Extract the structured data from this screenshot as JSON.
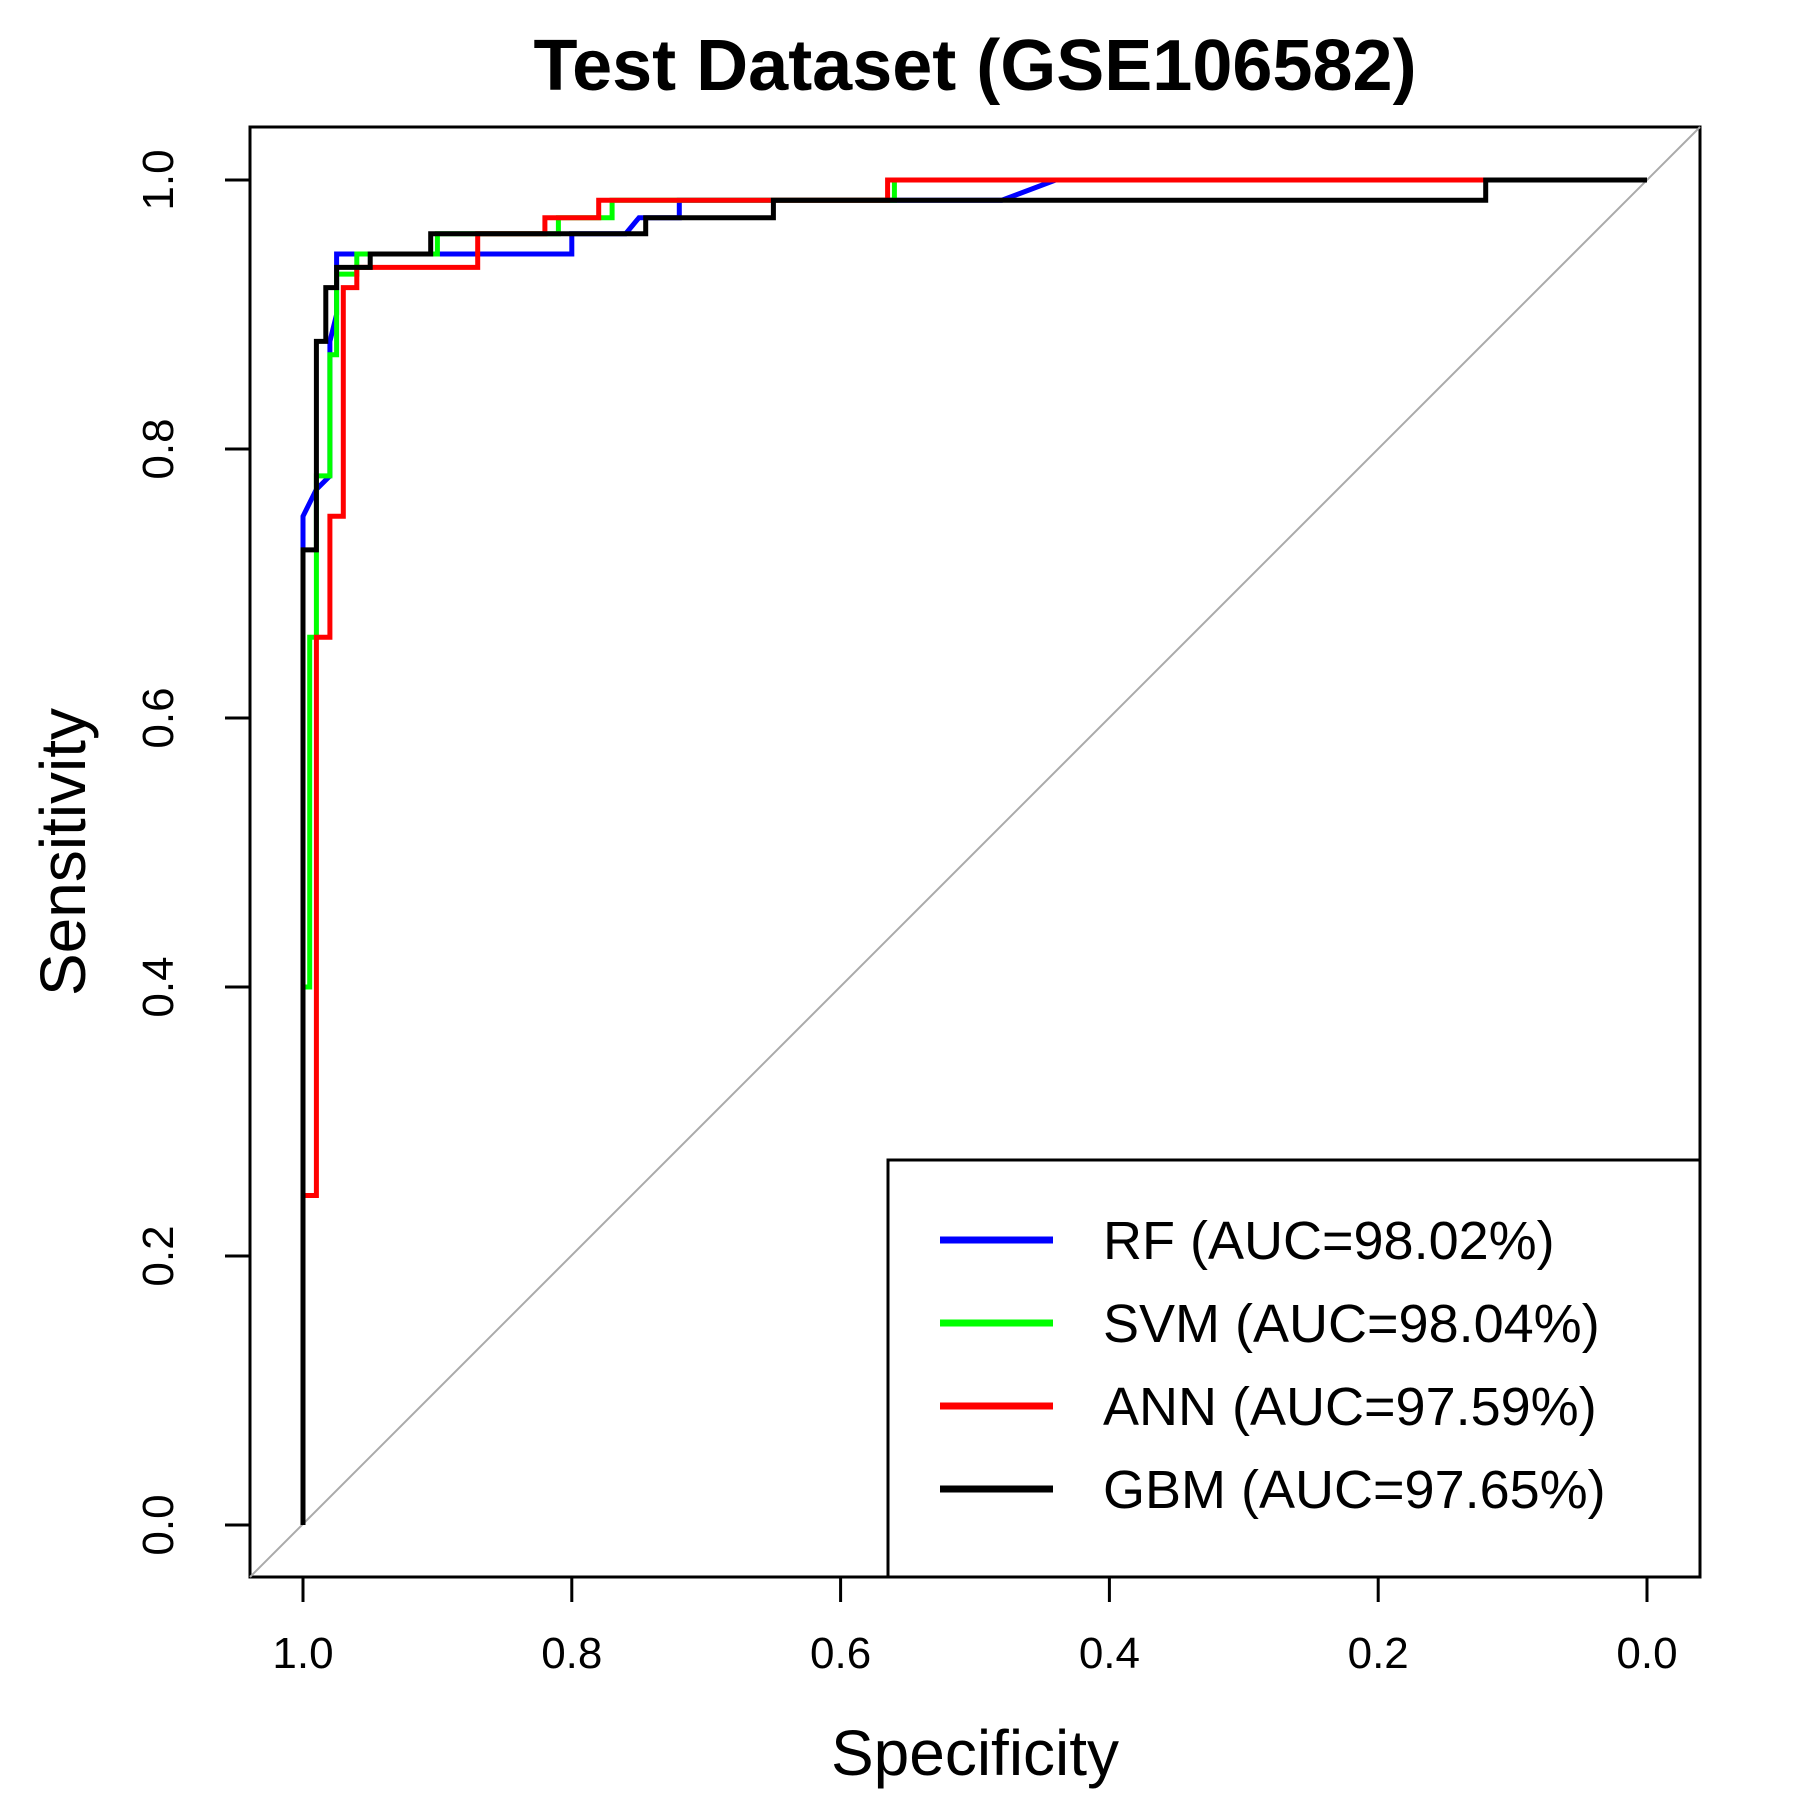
{
  "chart_data": {
    "type": "line",
    "title": "Test Dataset (GSE106582)",
    "xlabel": "Specificity",
    "ylabel": "Sensitivity",
    "xlim": [
      1.0,
      0.0
    ],
    "ylim": [
      0.0,
      1.0
    ],
    "x_reversed": true,
    "x_ticks": [
      "1.0",
      "0.8",
      "0.6",
      "0.4",
      "0.2",
      "0.0"
    ],
    "y_ticks": [
      "0.0",
      "0.2",
      "0.4",
      "0.6",
      "0.8",
      "1.0"
    ],
    "grid": false,
    "legend_position": "bottom-right",
    "reference_line": {
      "from": [
        1.0,
        0.0
      ],
      "to": [
        0.0,
        1.0
      ],
      "color": "#aaaaaa"
    },
    "series": [
      {
        "name": "RF (AUC=98.02%)",
        "color": "#0000ff",
        "points": [
          [
            1.0,
            0.0
          ],
          [
            1.0,
            0.75
          ],
          [
            0.99,
            0.77
          ],
          [
            0.98,
            0.78
          ],
          [
            0.98,
            0.88
          ],
          [
            0.975,
            0.9
          ],
          [
            0.975,
            0.945
          ],
          [
            0.8,
            0.945
          ],
          [
            0.8,
            0.96
          ],
          [
            0.76,
            0.96
          ],
          [
            0.75,
            0.972
          ],
          [
            0.72,
            0.972
          ],
          [
            0.72,
            0.985
          ],
          [
            0.48,
            0.985
          ],
          [
            0.44,
            1.0
          ],
          [
            0.0,
            1.0
          ]
        ]
      },
      {
        "name": "SVM (AUC=98.04%)",
        "color": "#00ff00",
        "points": [
          [
            1.0,
            0.0
          ],
          [
            1.0,
            0.4
          ],
          [
            0.995,
            0.4
          ],
          [
            0.995,
            0.66
          ],
          [
            0.99,
            0.66
          ],
          [
            0.99,
            0.78
          ],
          [
            0.98,
            0.78
          ],
          [
            0.98,
            0.87
          ],
          [
            0.975,
            0.87
          ],
          [
            0.975,
            0.93
          ],
          [
            0.96,
            0.93
          ],
          [
            0.96,
            0.945
          ],
          [
            0.9,
            0.945
          ],
          [
            0.9,
            0.96
          ],
          [
            0.81,
            0.96
          ],
          [
            0.81,
            0.972
          ],
          [
            0.77,
            0.972
          ],
          [
            0.77,
            0.985
          ],
          [
            0.56,
            0.985
          ],
          [
            0.56,
            1.0
          ],
          [
            0.0,
            1.0
          ]
        ]
      },
      {
        "name": "ANN (AUC=97.59%)",
        "color": "#ff0000",
        "points": [
          [
            1.0,
            0.0
          ],
          [
            1.0,
            0.245
          ],
          [
            0.99,
            0.245
          ],
          [
            0.99,
            0.66
          ],
          [
            0.98,
            0.66
          ],
          [
            0.98,
            0.75
          ],
          [
            0.97,
            0.75
          ],
          [
            0.97,
            0.92
          ],
          [
            0.96,
            0.92
          ],
          [
            0.96,
            0.935
          ],
          [
            0.87,
            0.935
          ],
          [
            0.87,
            0.96
          ],
          [
            0.82,
            0.96
          ],
          [
            0.82,
            0.972
          ],
          [
            0.78,
            0.972
          ],
          [
            0.78,
            0.985
          ],
          [
            0.565,
            0.985
          ],
          [
            0.565,
            1.0
          ],
          [
            0.0,
            1.0
          ]
        ]
      },
      {
        "name": "GBM (AUC=97.65%)",
        "color": "#000000",
        "points": [
          [
            1.0,
            0.0
          ],
          [
            1.0,
            0.725
          ],
          [
            0.99,
            0.725
          ],
          [
            0.99,
            0.88
          ],
          [
            0.983,
            0.88
          ],
          [
            0.983,
            0.92
          ],
          [
            0.975,
            0.92
          ],
          [
            0.975,
            0.935
          ],
          [
            0.95,
            0.935
          ],
          [
            0.95,
            0.945
          ],
          [
            0.905,
            0.945
          ],
          [
            0.905,
            0.96
          ],
          [
            0.76,
            0.96
          ],
          [
            0.745,
            0.96
          ],
          [
            0.745,
            0.972
          ],
          [
            0.65,
            0.972
          ],
          [
            0.65,
            0.985
          ],
          [
            0.12,
            0.985
          ],
          [
            0.12,
            1.0
          ],
          [
            0.0,
            1.0
          ]
        ]
      }
    ]
  }
}
